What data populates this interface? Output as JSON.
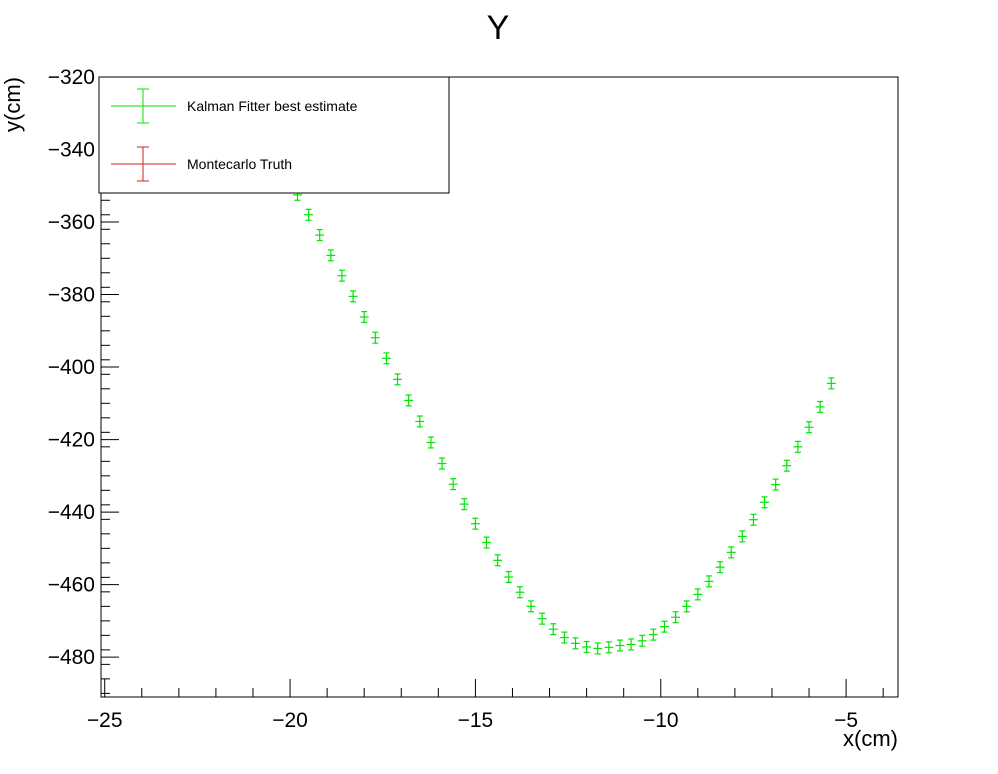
{
  "chart_data": {
    "type": "scatter",
    "title": "Y",
    "xlabel": "x(cm)",
    "ylabel": "y(cm)",
    "xlim": [
      -25.1,
      -3.6
    ],
    "ylim": [
      -491,
      -320
    ],
    "xticks": [
      -25,
      -20,
      -15,
      -10,
      -5
    ],
    "xtick_labels": [
      "−25",
      "−20",
      "−15",
      "−10",
      "−5"
    ],
    "yticks": [
      -320,
      -340,
      -360,
      -380,
      -400,
      -420,
      -440,
      -460,
      -480
    ],
    "ytick_labels": [
      "−320",
      "−340",
      "−360",
      "−380",
      "−400",
      "−420",
      "−440",
      "−460",
      "−480"
    ],
    "grid": false,
    "legend_position": "top-left",
    "colors": {
      "kalman": "#00e600",
      "truth": "#cc2222"
    },
    "series": [
      {
        "name": "Kalman Fitter best estimate",
        "color": "#00e600",
        "x_error": 0.12,
        "y_error": 1.5,
        "x": [
          -20.7,
          -20.4,
          -20.1,
          -19.8,
          -19.5,
          -19.2,
          -18.9,
          -18.6,
          -18.3,
          -18.0,
          -17.7,
          -17.4,
          -17.1,
          -16.8,
          -16.5,
          -16.2,
          -15.9,
          -15.6,
          -15.3,
          -15.0,
          -14.7,
          -14.4,
          -14.1,
          -13.8,
          -13.5,
          -13.2,
          -12.9,
          -12.6,
          -12.3,
          -12.0,
          -11.7,
          -11.4,
          -11.1,
          -10.8,
          -10.5,
          -10.2,
          -9.9,
          -9.6,
          -9.3,
          -9.0,
          -8.7,
          -8.4,
          -8.1,
          -7.8,
          -7.5,
          -7.2,
          -6.9,
          -6.6,
          -6.3,
          -6.0,
          -5.7,
          -5.4
        ],
        "y": [
          -336.0,
          -341.5,
          -347.0,
          -352.5,
          -358.0,
          -363.6,
          -369.2,
          -374.8,
          -380.5,
          -386.2,
          -391.9,
          -397.6,
          -403.4,
          -409.2,
          -415.0,
          -420.8,
          -426.6,
          -432.3,
          -437.8,
          -443.2,
          -448.4,
          -453.3,
          -457.9,
          -462.1,
          -466.0,
          -469.4,
          -472.3,
          -474.6,
          -476.2,
          -477.2,
          -477.6,
          -477.3,
          -476.8,
          -476.5,
          -475.5,
          -473.8,
          -471.6,
          -469.0,
          -466.0,
          -462.7,
          -459.1,
          -455.2,
          -451.1,
          -446.7,
          -442.1,
          -437.3,
          -432.4,
          -427.2,
          -422.0,
          -416.6,
          -411.0,
          -404.5
        ]
      },
      {
        "name": "Montecarlo Truth",
        "color": "#cc2222",
        "x": [],
        "y": []
      }
    ]
  }
}
